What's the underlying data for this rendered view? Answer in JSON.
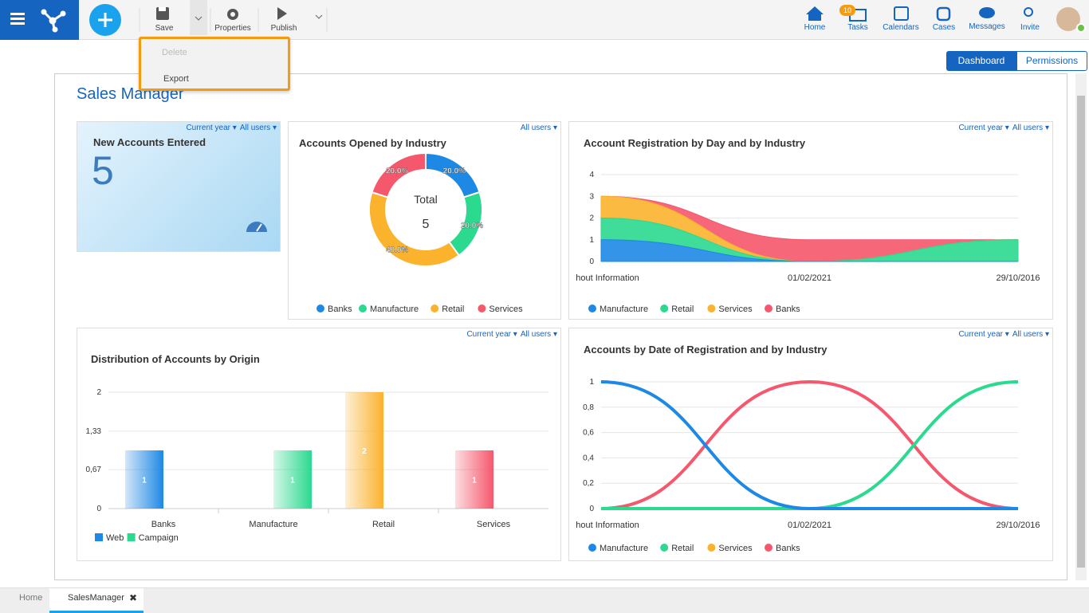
{
  "toolbar": {
    "buttons": [
      "Save",
      "Properties",
      "Publish"
    ],
    "nav": [
      "Home",
      "Tasks",
      "Calendars",
      "Cases",
      "Messages",
      "Invite"
    ],
    "tasks_badge": 10
  },
  "menu": [
    "Delete",
    "Export"
  ],
  "view_tabs": [
    "Dashboard",
    "Permissions"
  ],
  "dashboard_title": "Sales Manager",
  "widgets": {
    "new_accounts": {
      "title": "New Accounts Entered",
      "value": 5,
      "filters": [
        "Current year",
        "All users"
      ]
    },
    "industry_donut": {
      "type": "pie",
      "title": "Accounts Opened by Industry",
      "filters": [
        "All users"
      ],
      "center_label": "Total",
      "total": 5,
      "categories": [
        "Banks",
        "Manufacture",
        "Retail",
        "Services"
      ],
      "values": [
        20,
        20,
        40,
        20
      ],
      "value_labels": [
        "20.0%",
        "20.0%",
        "40.0%",
        "20.0%"
      ],
      "colors": [
        "#1e88e5",
        "#2bd98f",
        "#fbb22d",
        "#f5576c"
      ]
    },
    "registration_area": {
      "type": "area",
      "stacked": true,
      "title": "Account Registration by Day and by Industry",
      "filters": [
        "Current year",
        "All users"
      ],
      "categories": [
        "hout Information",
        "01/02/2021",
        "29/10/2016"
      ],
      "series": [
        {
          "name": "Manufacture",
          "color": "#1e88e5",
          "values": [
            1,
            0,
            0
          ]
        },
        {
          "name": "Retail",
          "color": "#2bd98f",
          "values": [
            1,
            0,
            1
          ]
        },
        {
          "name": "Services",
          "color": "#fbb22d",
          "values": [
            1,
            0,
            0
          ]
        },
        {
          "name": "Banks",
          "color": "#f5576c",
          "values": [
            0,
            1,
            0
          ]
        }
      ],
      "ylim": [
        0,
        4
      ],
      "yticks": [
        0,
        1,
        2,
        3,
        4
      ],
      "grid": true
    },
    "origin_bar": {
      "type": "bar",
      "title": "Distribution of Accounts by Origin",
      "filters": [
        "Current year",
        "All users"
      ],
      "categories": [
        "Banks",
        "Manufacture",
        "Retail",
        "Services"
      ],
      "category_colors": [
        "#1e88e5",
        "#2bd98f",
        "#fbb22d",
        "#f5576c"
      ],
      "series": [
        {
          "name": "Web",
          "color": "#1e88e5",
          "values": [
            1,
            null,
            2,
            1
          ]
        },
        {
          "name": "Campaign",
          "color": "#2bd98f",
          "values": [
            null,
            1,
            null,
            null
          ]
        }
      ],
      "ylim": [
        0,
        2
      ],
      "yticks": [
        0,
        {
          "value": 0.67,
          "label": "0,67"
        },
        {
          "value": 1.33,
          "label": "1,33"
        },
        2
      ],
      "grid": true
    },
    "date_line": {
      "type": "line",
      "title": "Accounts by Date of Registration and by Industry",
      "filters": [
        "Current year",
        "All users"
      ],
      "categories": [
        "hout Information",
        "01/02/2021",
        "29/10/2016"
      ],
      "series": [
        {
          "name": "Manufacture",
          "color": "#1e88e5",
          "values": [
            1,
            0,
            0
          ]
        },
        {
          "name": "Retail",
          "color": "#2bd98f",
          "values": [
            0,
            0,
            1
          ]
        },
        {
          "name": "Services",
          "color": "#fbb22d",
          "values": [
            0,
            0,
            0
          ]
        },
        {
          "name": "Banks",
          "color": "#f5576c",
          "values": [
            0,
            1,
            0
          ]
        }
      ],
      "ylim": [
        0,
        1
      ],
      "yticks": [
        0,
        {
          "value": 0.2,
          "label": "0,2"
        },
        {
          "value": 0.4,
          "label": "0,4"
        },
        {
          "value": 0.6,
          "label": "0,6"
        },
        {
          "value": 0.8,
          "label": "0,8"
        },
        1
      ],
      "grid": true
    }
  },
  "bottom_tabs": [
    "Home",
    "SalesManager"
  ]
}
